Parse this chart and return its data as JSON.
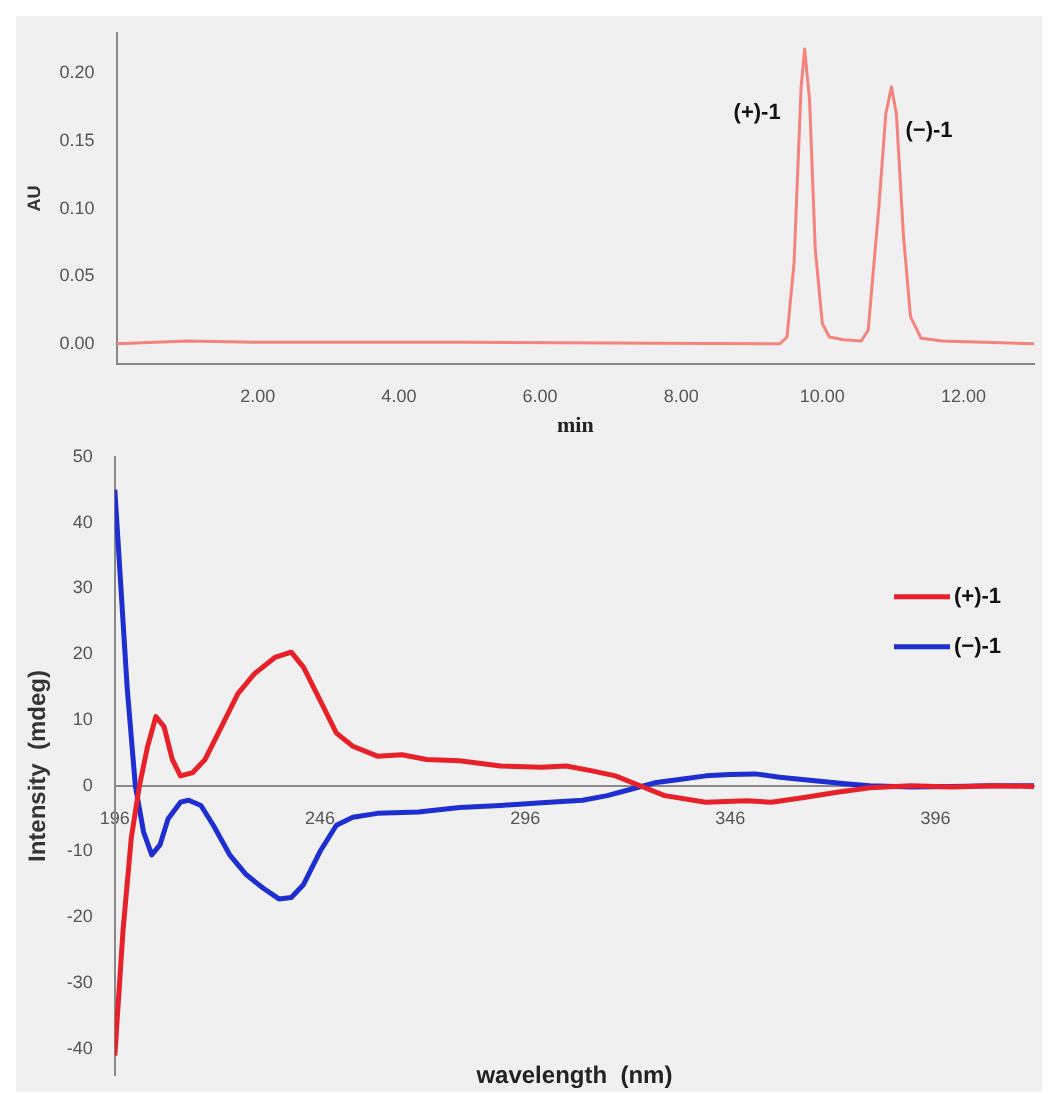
{
  "chart_data": [
    {
      "type": "line",
      "xlabel": "min",
      "ylabel": "AU",
      "xlim": [
        0,
        13
      ],
      "ylim": [
        -0.015,
        0.23
      ],
      "xticks": [
        {
          "value": 2,
          "label": "2.00"
        },
        {
          "value": 4,
          "label": "4.00"
        },
        {
          "value": 6,
          "label": "6.00"
        },
        {
          "value": 8,
          "label": "8.00"
        },
        {
          "value": 10,
          "label": "10.00"
        },
        {
          "value": 12,
          "label": "12.00"
        }
      ],
      "yticks": [
        {
          "value": 0,
          "label": "0.00"
        },
        {
          "value": 0.05,
          "label": "0.05"
        },
        {
          "value": 0.1,
          "label": "0.10"
        },
        {
          "value": 0.15,
          "label": "0.15"
        },
        {
          "value": 0.2,
          "label": "0.20"
        }
      ],
      "grid": false,
      "legend": false,
      "annotations": [
        {
          "text": "(+)-1",
          "x": 9.75,
          "y": 0.218
        },
        {
          "text": "(−)-1",
          "x": 10.98,
          "y": 0.19
        }
      ],
      "series": [
        {
          "color": "#f4837d",
          "x": [
            0,
            1,
            2,
            5,
            9.4,
            9.5,
            9.6,
            9.7,
            9.75,
            9.82,
            9.9,
            10,
            10.1,
            10.3,
            10.55,
            10.65,
            10.8,
            10.9,
            10.98,
            11.05,
            11.15,
            11.25,
            11.4,
            11.7,
            13
          ],
          "values": [
            0,
            0.002,
            0.001,
            0.001,
            0,
            0.005,
            0.06,
            0.19,
            0.218,
            0.18,
            0.07,
            0.015,
            0.005,
            0.003,
            0.002,
            0.01,
            0.1,
            0.17,
            0.19,
            0.17,
            0.08,
            0.02,
            0.004,
            0.002,
            0
          ]
        }
      ]
    },
    {
      "type": "line",
      "xlabel": "wavelength  (nm)",
      "ylabel": "Intensity  (mdeg)",
      "xlim": [
        196,
        420
      ],
      "ylim": [
        -44,
        50
      ],
      "xticks": [
        196,
        246,
        296,
        346,
        396
      ],
      "yticks": [
        -40,
        -30,
        -20,
        -10,
        0,
        10,
        20,
        30,
        40,
        50
      ],
      "grid": false,
      "legend": "top right",
      "series": [
        {
          "name": "(+)-1",
          "color": "#e8202a",
          "x": [
            196,
            198,
            200,
            202,
            204,
            206,
            208,
            210,
            212,
            215,
            218,
            222,
            226,
            230,
            235,
            239,
            242,
            246,
            250,
            254,
            260,
            266,
            272,
            280,
            290,
            300,
            306,
            312,
            318,
            324,
            330,
            340,
            350,
            356,
            364,
            372,
            380,
            390,
            400,
            410,
            420
          ],
          "values": [
            -41,
            -22,
            -8,
            0,
            6,
            10.5,
            9,
            4,
            1.5,
            2,
            4,
            9,
            14,
            17,
            19.5,
            20.3,
            18,
            13,
            8,
            6,
            4.5,
            4.7,
            4,
            3.8,
            3,
            2.8,
            3,
            2.3,
            1.5,
            0,
            -1.5,
            -2.5,
            -2.3,
            -2.5,
            -1.8,
            -1,
            -0.3,
            0,
            -0.2,
            0,
            -0.1
          ]
        },
        {
          "name": "(−)-1",
          "color": "#1f2ed0",
          "x": [
            196,
            197,
            199,
            201,
            203,
            205,
            207,
            209,
            212,
            214,
            217,
            220,
            224,
            228,
            232,
            236,
            239,
            242,
            246,
            250,
            254,
            260,
            270,
            280,
            290,
            300,
            310,
            316,
            322,
            328,
            334,
            340,
            346,
            352,
            358,
            366,
            374,
            380,
            390,
            400,
            410,
            420
          ],
          "values": [
            45,
            35,
            15,
            0,
            -7,
            -10.5,
            -9,
            -5,
            -2.5,
            -2.2,
            -3,
            -6,
            -10.5,
            -13.5,
            -15.5,
            -17.2,
            -17,
            -15,
            -10,
            -6,
            -4.8,
            -4.2,
            -4,
            -3.3,
            -3,
            -2.6,
            -2.2,
            -1.5,
            -0.5,
            0.5,
            1,
            1.5,
            1.7,
            1.8,
            1.3,
            0.8,
            0.3,
            0,
            -0.2,
            -0.1,
            0,
            0
          ]
        }
      ]
    }
  ]
}
